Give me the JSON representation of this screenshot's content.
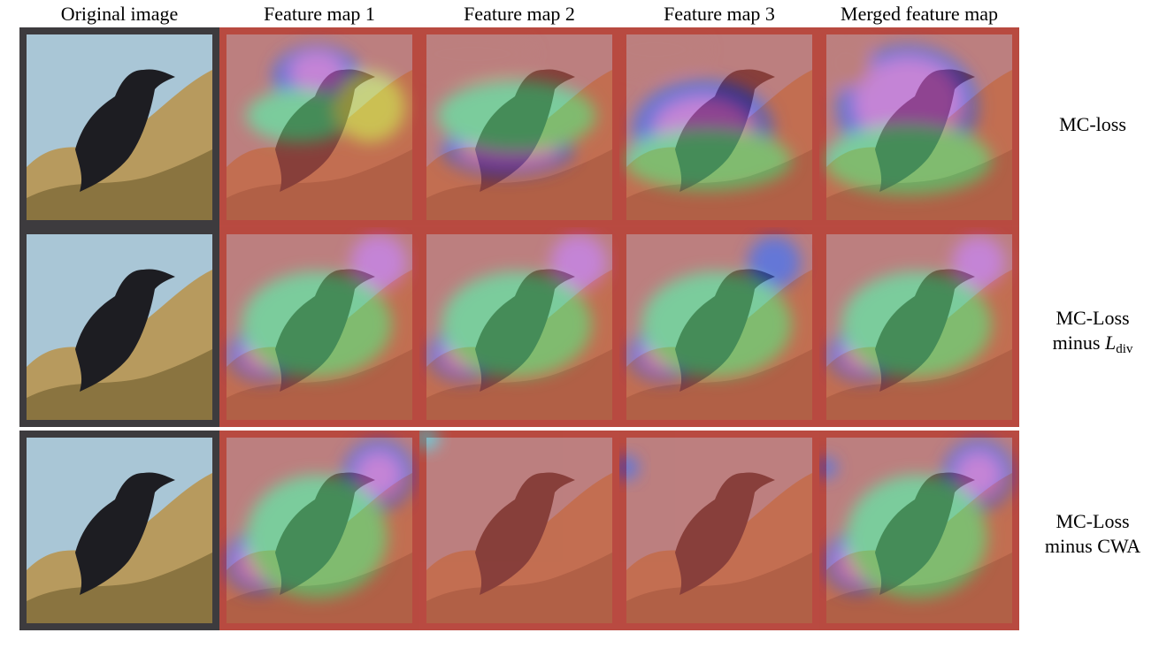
{
  "columns": {
    "original": "Original image",
    "fm1": "Feature map 1",
    "fm2": "Feature map 2",
    "fm3": "Feature map 3",
    "merged": "Merged feature map"
  },
  "rows": [
    {
      "label": "MC-loss"
    },
    {
      "label_line1": "MC-Loss",
      "label_line2_prefix": "minus",
      "label_var": "L",
      "label_sub": "div"
    },
    {
      "label_line1": "MC-Loss",
      "label_line2": "minus CWA"
    }
  ],
  "colors": {
    "sky": "#a9c6d6",
    "bird": "#1d1d22",
    "bush": "#b79a5e",
    "frame_dark": "#3d3b3e",
    "frame_heat": "#9e3b32",
    "heat_red": "#c9544a",
    "heat_yellow": "#d8d84e",
    "heat_green": "#5fd07a",
    "heat_cyan": "#48d3e0",
    "heat_blue": "#3b47d8",
    "heat_magenta": "#d65bd6"
  }
}
